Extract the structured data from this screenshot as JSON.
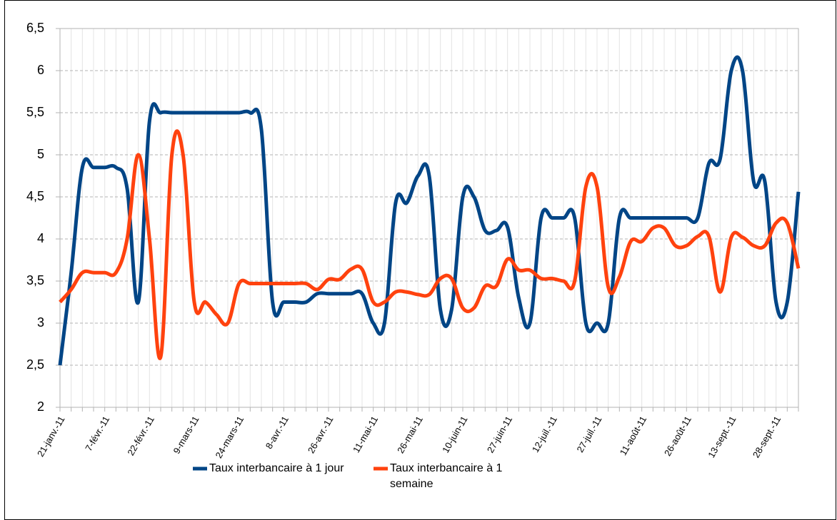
{
  "chart_data": {
    "type": "line",
    "categories": [
      "21-janv.-11",
      null,
      null,
      null,
      "7-févr.-11",
      null,
      null,
      null,
      "22-févr.-11",
      null,
      null,
      null,
      "9-mars-11",
      null,
      null,
      null,
      "24-mars-11",
      null,
      null,
      null,
      "8-avr.-11",
      null,
      null,
      null,
      "26-avr.-11",
      null,
      null,
      null,
      "11-mai-11",
      null,
      null,
      null,
      "26-mai-11",
      null,
      null,
      null,
      "10-juin-11",
      null,
      null,
      null,
      "27-juin-11",
      null,
      null,
      null,
      "12-juil.-11",
      null,
      null,
      null,
      "27-juil.-11",
      null,
      null,
      null,
      "11-août-11",
      null,
      null,
      null,
      "26-août-11",
      null,
      null,
      null,
      "13-sept.-11",
      null,
      null,
      null,
      "28-sept.-11",
      null,
      null
    ],
    "series": [
      {
        "name": "Taux interbancaire à 1 jour",
        "color": "#004586",
        "values": [
          2.5,
          3.6,
          4.85,
          4.85,
          4.85,
          4.85,
          4.6,
          3.25,
          5.4,
          5.5,
          5.5,
          5.5,
          5.5,
          5.5,
          5.5,
          5.5,
          5.5,
          5.5,
          5.3,
          3.25,
          3.25,
          3.25,
          3.25,
          3.35,
          3.35,
          3.35,
          3.35,
          3.35,
          3.0,
          3.0,
          4.43,
          4.43,
          4.75,
          4.75,
          3.16,
          3.16,
          4.5,
          4.5,
          4.1,
          4.1,
          4.14,
          3.3,
          3.0,
          4.25,
          4.25,
          4.25,
          4.25,
          3.0,
          3.0,
          3.0,
          4.25,
          4.25,
          4.25,
          4.25,
          4.25,
          4.25,
          4.25,
          4.25,
          4.9,
          4.95,
          6.0,
          6.0,
          4.68,
          4.68,
          3.25,
          3.25,
          4.56
        ]
      },
      {
        "name": "Taux interbancaire à 1 semaine",
        "color": "#ff420e",
        "values": [
          3.25,
          3.4,
          3.6,
          3.6,
          3.6,
          3.6,
          4.0,
          5.0,
          4.0,
          2.6,
          5.0,
          5.0,
          3.25,
          3.25,
          3.1,
          3.0,
          3.47,
          3.47,
          3.47,
          3.47,
          3.47,
          3.47,
          3.47,
          3.4,
          3.52,
          3.52,
          3.64,
          3.64,
          3.25,
          3.25,
          3.37,
          3.37,
          3.34,
          3.34,
          3.53,
          3.53,
          3.18,
          3.18,
          3.44,
          3.44,
          3.76,
          3.63,
          3.63,
          3.53,
          3.53,
          3.5,
          3.5,
          4.62,
          4.62,
          3.43,
          3.55,
          3.97,
          3.97,
          4.13,
          4.13,
          3.92,
          3.92,
          4.03,
          4.03,
          3.37,
          4.02,
          4.02,
          3.92,
          3.92,
          4.19,
          4.19,
          3.65
        ]
      }
    ],
    "ylim": [
      2,
      6.5
    ],
    "yticks": [
      2,
      {
        "value": 2.5,
        "label": "2,5"
      },
      3,
      {
        "value": 3.5,
        "label": "3,5"
      },
      4,
      {
        "value": 4.5,
        "label": "4,5"
      },
      5,
      {
        "value": 5.5,
        "label": "5,5"
      },
      6,
      {
        "value": 6.5,
        "label": "6,5"
      }
    ],
    "grid": true,
    "legend": "bottom"
  }
}
